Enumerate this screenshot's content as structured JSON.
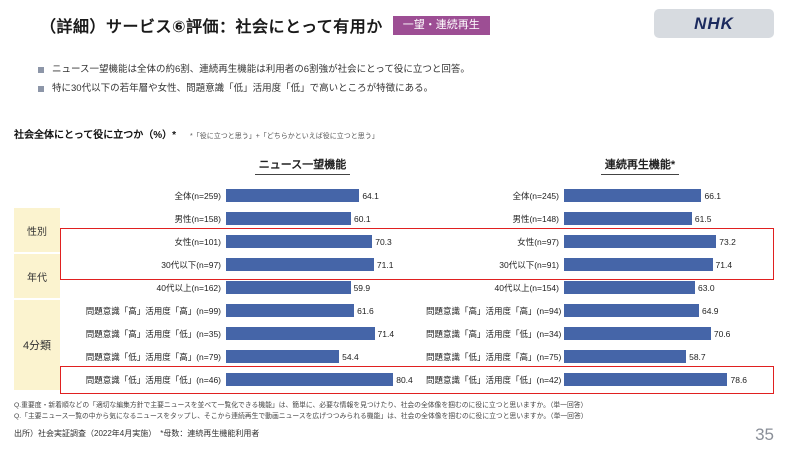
{
  "header": {
    "title": "（詳細）サービス⑥評価：社会にとって有用か",
    "badge": "一望・連続再生",
    "logo": "NHK"
  },
  "bullets": [
    "ニュース一望機能は全体の約6割、連続再生機能は利用者の6割強が社会にとって役に立つと回答。",
    "特に30代以下の若年層や女性、問題意識「低」活用度「低」で高いところが特徴にある。"
  ],
  "section": {
    "label": "社会全体にとって役に立つか（%）*",
    "note": "*「役に立つと思う」+「どちらかといえば役に立つと思う」"
  },
  "group_labels": [
    "性別",
    "年代",
    "4分類"
  ],
  "chart_data": {
    "type": "bar",
    "orientation": "horizontal",
    "xlim": [
      0,
      100
    ],
    "bar_color": "#4565a8",
    "highlighted_rows": [
      "女性",
      "30代以下",
      "問題意識「低」活用度「低」"
    ],
    "charts": [
      {
        "title": "ニュース一望機能",
        "categories": [
          "全体(n=259)",
          "男性(n=158)",
          "女性(n=101)",
          "30代以下(n=97)",
          "40代以上(n=162)",
          "問題意識「高」活用度「高」(n=99)",
          "問題意識「高」活用度「低」(n=35)",
          "問題意識「低」活用度「高」(n=79)",
          "問題意識「低」活用度「低」(n=46)"
        ],
        "values": [
          64.1,
          60.1,
          70.3,
          71.1,
          59.9,
          61.6,
          71.4,
          54.4,
          80.4
        ]
      },
      {
        "title": "連続再生機能*",
        "categories": [
          "全体(n=245)",
          "男性(n=148)",
          "女性(n=97)",
          "30代以下(n=91)",
          "40代以上(n=154)",
          "問題意識「高」活用度「高」(n=94)",
          "問題意識「高」活用度「低」(n=34)",
          "問題意識「低」活用度「高」(n=75)",
          "問題意識「低」活用度「低」(n=42)"
        ],
        "values": [
          66.1,
          61.5,
          73.2,
          71.4,
          63.0,
          64.9,
          70.6,
          58.7,
          78.6
        ]
      }
    ]
  },
  "footnotes": [
    "Q.重要度・新着順などの「適切な編集方針で主要ニュースを並べて一覧化できる機能」は、簡単に、必要な情報を見つけたり、社会の全体像を掴むのに役に立つと思いますか。（単一回答）",
    "Q.「主要ニュース一覧の中から気になるニュースをタップし、そこから連続再生で動画ニュースを広げつつみられる機能」は、社会の全体像を掴むのに役に立つと思いますか。（単一回答）"
  ],
  "source": "出所）社会実証調査（2022年4月実施）　*母数：連続再生機能利用者",
  "page_number": "35"
}
